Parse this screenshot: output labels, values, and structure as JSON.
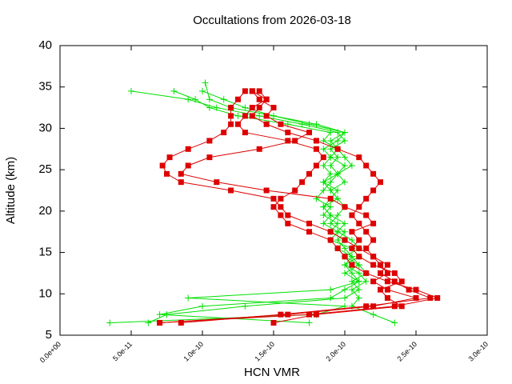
{
  "chart_data": {
    "type": "profile-lines",
    "title": "Occultations from 2026-03-18",
    "x_label": "HCN VMR",
    "y_label": "Altitude (km)",
    "xlim": [
      0,
      3e-10
    ],
    "ylim": [
      5,
      40
    ],
    "xticks": [
      {
        "value": 0,
        "label": "0.0e+00"
      },
      {
        "value": 5e-11,
        "label": "5.0e-11"
      },
      {
        "value": 1e-10,
        "label": "1.0e-10"
      },
      {
        "value": 1.5e-10,
        "label": "1.5e-10"
      },
      {
        "value": 2e-10,
        "label": "2.0e-10"
      },
      {
        "value": 2.5e-10,
        "label": "2.5e-10"
      },
      {
        "value": 3e-10,
        "label": "3.0e-10"
      }
    ],
    "yticks": [
      5,
      10,
      15,
      20,
      25,
      30,
      35,
      40
    ],
    "series": [
      {
        "color": "#00e000",
        "marker": "plus",
        "x": [
          3.5e-11,
          1.8e-10,
          2e-10,
          9e-11,
          1.9e-10,
          2.1e-10,
          2.05e-10,
          2e-10,
          2.05e-10,
          1.95e-10,
          2e-10,
          1.9e-10,
          1.95e-10,
          1.85e-10,
          1.9e-10,
          1.8e-10,
          1.85e-10,
          1.9e-10,
          1.95e-10,
          1.9e-10,
          1.95e-10,
          1.9e-10,
          2e-10,
          1.95e-10,
          1.7e-10,
          1.4e-10,
          1.1e-10,
          9e-11,
          5e-11
        ],
        "values": [
          6.5,
          7.5,
          8.5,
          9.5,
          10.5,
          11.5,
          12.5,
          13.5,
          14.5,
          15.5,
          16.5,
          17.5,
          18.5,
          19.5,
          20.5,
          21.5,
          22.5,
          23.5,
          24.5,
          25.5,
          26.5,
          27.5,
          28.5,
          29.5,
          30.5,
          31.5,
          32.5,
          33.5,
          34.5
        ]
      },
      {
        "color": "#00e000",
        "marker": "plus",
        "x": [
          6.2e-11,
          7.5e-11,
          1.3e-10,
          2e-10,
          2.1e-10,
          2.05e-10,
          2.15e-10,
          2.1e-10,
          2.05e-10,
          2e-10,
          1.95e-10,
          2e-10,
          1.9e-10,
          1.95e-10,
          2e-10,
          1.95e-10,
          1.9e-10,
          2e-10,
          1.95e-10,
          2.05e-10,
          2e-10,
          1.95e-10,
          1.9e-10,
          2e-10,
          1.8e-10,
          1.5e-10,
          1.3e-10,
          1.15e-10,
          1e-10
        ],
        "values": [
          6.5,
          7.5,
          8.5,
          9.5,
          10.5,
          11.5,
          12.5,
          13.5,
          14.5,
          15.5,
          16.5,
          17.5,
          18.5,
          19.5,
          20.5,
          21.5,
          22.5,
          23.5,
          24.5,
          25.5,
          26.5,
          27.5,
          28.5,
          29.5,
          30.5,
          31.5,
          32.5,
          33.5,
          34.5
        ]
      },
      {
        "color": "#00e000",
        "marker": "plus",
        "x": [
          2.35e-10,
          2.2e-10,
          2.05e-10,
          2.1e-10,
          2.05e-10,
          2.15e-10,
          2.1e-10,
          2e-10,
          2.1e-10,
          2.05e-10,
          1.9e-10,
          1.95e-10,
          1.85e-10,
          1.9e-10,
          1.85e-10,
          1.9e-10,
          1.95e-10,
          1.85e-10,
          1.9e-10,
          1.85e-10,
          1.9e-10,
          1.95e-10,
          1.85e-10,
          1.9e-10,
          1.6e-10,
          1.25e-10,
          1.05e-10,
          9.5e-11,
          8e-11
        ],
        "values": [
          6.5,
          7.5,
          8.5,
          9.5,
          10.5,
          11.5,
          12.5,
          13.5,
          14.5,
          15.5,
          16.5,
          17.5,
          18.5,
          19.5,
          20.5,
          21.5,
          22.5,
          23.5,
          24.5,
          25.5,
          26.5,
          27.5,
          28.5,
          29.5,
          30.5,
          31.5,
          32.5,
          33.5,
          34.5
        ]
      },
      {
        "color": "#00e000",
        "marker": "plus",
        "x": [
          1.75e-10,
          7e-11,
          1e-10,
          1.9e-10,
          2e-10,
          2.1e-10,
          2e-10,
          2.1e-10,
          2e-10,
          2.1e-10,
          2.05e-10,
          1.95e-10,
          2e-10,
          1.9e-10,
          1.85e-10,
          1.95e-10,
          1.9e-10,
          1.85e-10,
          1.95e-10,
          2e-10,
          1.9e-10,
          1.85e-10,
          1.95e-10,
          2e-10,
          1.75e-10,
          1.5e-10,
          1.2e-10,
          1.05e-10,
          1.02e-10
        ],
        "values": [
          6.5,
          7.5,
          8.5,
          9.5,
          10.5,
          11.5,
          12.5,
          13.5,
          14.5,
          15.5,
          16.5,
          17.5,
          18.5,
          19.5,
          20.5,
          21.5,
          22.5,
          23.5,
          24.5,
          25.5,
          26.5,
          27.5,
          28.5,
          29.5,
          30.5,
          31.5,
          32.5,
          33.5,
          35.5
        ]
      },
      {
        "color": "#dd0000",
        "marker": "square",
        "x": [
          7e-11,
          1.6e-10,
          2.2e-10,
          2.5e-10,
          2.3e-10,
          2.2e-10,
          2.3e-10,
          2.25e-10,
          2.2e-10,
          2.1e-10,
          2e-10,
          1.9e-10,
          1.75e-10,
          1.6e-10,
          1.55e-10,
          1.5e-10,
          1.2e-10,
          8.5e-11,
          7.5e-11,
          7.2e-11,
          7.7e-11,
          9e-11,
          1.05e-10,
          1.15e-10,
          1.2e-10,
          1.2e-10,
          1.2e-10,
          1.25e-10,
          1.3e-10
        ],
        "values": [
          6.5,
          7.5,
          8.5,
          9.5,
          10.5,
          11.5,
          12.5,
          13.5,
          14.5,
          15.5,
          16.5,
          17.5,
          18.5,
          19.5,
          20.5,
          21.5,
          22.5,
          23.5,
          24.5,
          25.5,
          26.5,
          27.5,
          28.5,
          29.5,
          30.5,
          31.5,
          32.5,
          33.5,
          34.5
        ]
      },
      {
        "color": "#dd0000",
        "marker": "square",
        "x": [
          8.5e-11,
          1.55e-10,
          2.15e-10,
          2.6e-10,
          2.45e-10,
          2.35e-10,
          2.25e-10,
          2.3e-10,
          2.2e-10,
          2.15e-10,
          2.2e-10,
          2.15e-10,
          2.1e-10,
          2.05e-10,
          2.1e-10,
          2.15e-10,
          2.2e-10,
          2.25e-10,
          2.2e-10,
          2.15e-10,
          2.1e-10,
          1.95e-10,
          1.8e-10,
          1.6e-10,
          1.45e-10,
          1.35e-10,
          1.4e-10,
          1.45e-10,
          1.4e-10
        ],
        "values": [
          6.5,
          7.5,
          8.5,
          9.5,
          10.5,
          11.5,
          12.5,
          13.5,
          14.5,
          15.5,
          16.5,
          17.5,
          18.5,
          19.5,
          20.5,
          21.5,
          22.5,
          23.5,
          24.5,
          25.5,
          26.5,
          27.5,
          28.5,
          29.5,
          30.5,
          31.5,
          32.5,
          33.5,
          34.5
        ]
      },
      {
        "color": "#dd0000",
        "marker": "square",
        "x": [
          7e-11,
          1.75e-10,
          2.35e-10,
          2.65e-10,
          2.5e-10,
          2.3e-10,
          2.15e-10,
          2.05e-10,
          2e-10,
          1.95e-10,
          1.9e-10,
          1.75e-10,
          1.6e-10,
          1.55e-10,
          1.5e-10,
          1.55e-10,
          1.65e-10,
          1.7e-10,
          1.75e-10,
          1.8e-10,
          1.85e-10,
          1.8e-10,
          1.6e-10,
          1.3e-10,
          1.25e-10,
          1.3e-10,
          1.35e-10,
          1.45e-10,
          1.35e-10
        ],
        "values": [
          6.5,
          7.5,
          8.5,
          9.5,
          10.5,
          11.5,
          12.5,
          13.5,
          14.5,
          15.5,
          16.5,
          17.5,
          18.5,
          19.5,
          20.5,
          21.5,
          22.5,
          23.5,
          24.5,
          25.5,
          26.5,
          27.5,
          28.5,
          29.5,
          30.5,
          31.5,
          32.5,
          33.5,
          34.5
        ]
      },
      {
        "color": "#dd0000",
        "marker": "square",
        "x": [
          1.5e-10,
          1.8e-10,
          2.4e-10,
          2.3e-10,
          2.25e-10,
          2.4e-10,
          2.35e-10,
          2.2e-10,
          2.1e-10,
          2.05e-10,
          2.1e-10,
          2.05e-10,
          2.2e-10,
          2.15e-10,
          2e-10,
          1.9e-10,
          1.45e-10,
          1.1e-10,
          8.5e-11,
          9e-11,
          1.05e-10,
          1.4e-10,
          1.65e-10,
          1.75e-10,
          1.55e-10,
          1.45e-10,
          1.5e-10,
          1.4e-10,
          1.35e-10
        ],
        "values": [
          6.5,
          7.5,
          8.5,
          9.5,
          10.5,
          11.5,
          12.5,
          13.5,
          14.5,
          15.5,
          16.5,
          17.5,
          18.5,
          19.5,
          20.5,
          21.5,
          22.5,
          23.5,
          24.5,
          25.5,
          26.5,
          27.5,
          28.5,
          29.5,
          30.5,
          31.5,
          32.5,
          33.5,
          34.5
        ]
      }
    ]
  }
}
